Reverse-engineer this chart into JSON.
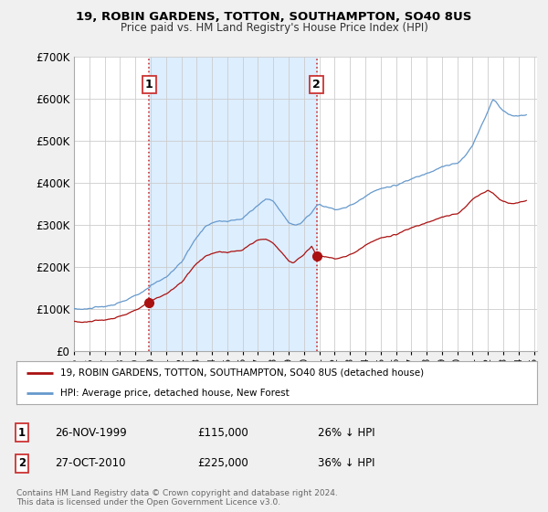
{
  "title": "19, ROBIN GARDENS, TOTTON, SOUTHAMPTON, SO40 8US",
  "subtitle": "Price paid vs. HM Land Registry's House Price Index (HPI)",
  "background_color": "#f0f0f0",
  "plot_bg_color": "#ffffff",
  "shade_color": "#ddeeff",
  "hpi_color": "#6699cc",
  "price_color": "#aa1111",
  "ylim": [
    0,
    700000
  ],
  "yticks": [
    0,
    100000,
    200000,
    300000,
    400000,
    500000,
    600000,
    700000
  ],
  "xlim_start": 1995.0,
  "xlim_end": 2025.2,
  "purchase1_year": 1999.9,
  "purchase1_price": 115000,
  "purchase2_year": 2010.83,
  "purchase2_price": 225000,
  "legend_house_label": "19, ROBIN GARDENS, TOTTON, SOUTHAMPTON, SO40 8US (detached house)",
  "legend_hpi_label": "HPI: Average price, detached house, New Forest",
  "table_entries": [
    {
      "num": "1",
      "date": "26-NOV-1999",
      "price": "£115,000",
      "hpi": "26% ↓ HPI"
    },
    {
      "num": "2",
      "date": "27-OCT-2010",
      "price": "£225,000",
      "hpi": "36% ↓ HPI"
    }
  ],
  "footnote": "Contains HM Land Registry data © Crown copyright and database right 2024.\nThis data is licensed under the Open Government Licence v3.0."
}
